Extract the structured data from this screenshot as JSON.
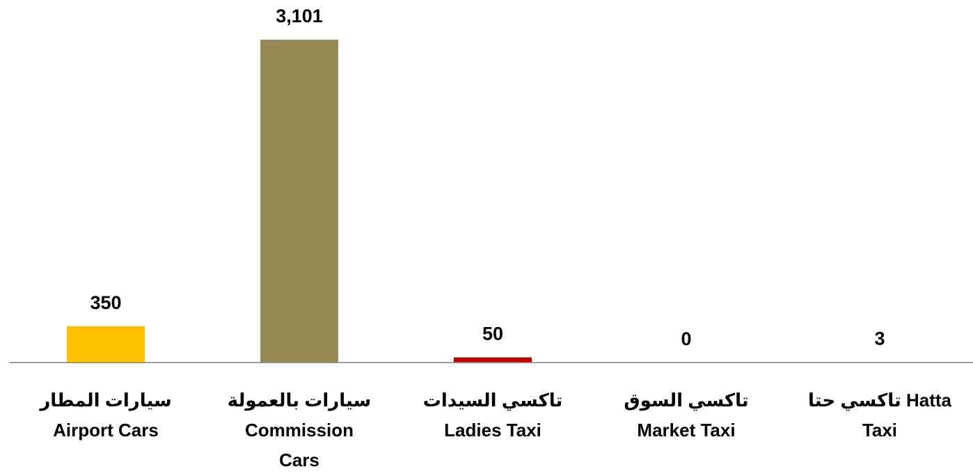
{
  "chart_data": {
    "type": "bar",
    "categories": [
      [
        "سيارات  المطار",
        "Airport Cars"
      ],
      [
        "سيارات بالعمولة",
        "Commission",
        "Cars"
      ],
      [
        "تاكسي السيدات",
        "Ladies Taxi"
      ],
      [
        "تاكسي السوق",
        "Market Taxi"
      ],
      [
        "تاكسي حتا   Hatta",
        "Taxi"
      ]
    ],
    "values": [
      350,
      3101,
      50,
      0,
      3
    ],
    "value_labels": [
      "350",
      "3,101",
      "50",
      "0",
      "3"
    ],
    "colors": [
      "#ffc000",
      "#968b56",
      "#c00000",
      "#7f7f7f",
      "#7f7f7f"
    ],
    "ylim": [
      0,
      3101
    ]
  }
}
